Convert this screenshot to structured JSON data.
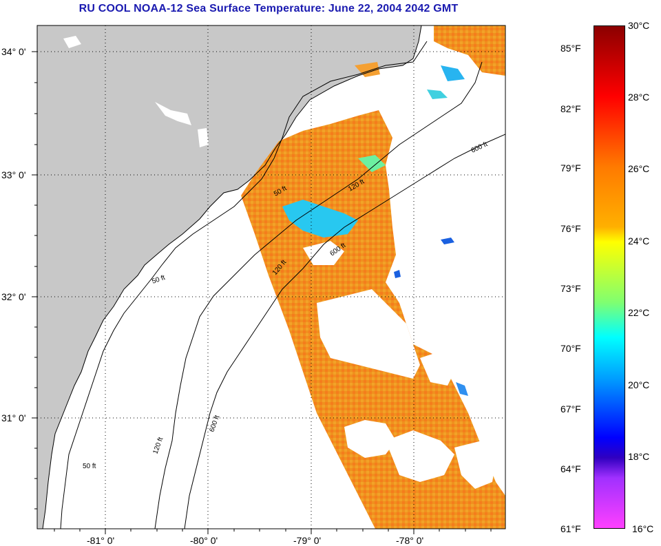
{
  "title": "RU COOL  NOAA-12  Sea Surface Temperature:  June 22, 2004 2042 GMT",
  "map": {
    "lat_labels": [
      "34° 0'",
      "33° 0'",
      "32° 0'",
      "31° 0'"
    ],
    "lon_labels": [
      "-81° 0'",
      "-80° 0'",
      "-79° 0'",
      "-78° 0'"
    ],
    "contour_labels": [
      "50 ft",
      "120 ft",
      "600 ft"
    ],
    "colors": {
      "land": "#c8c8c8",
      "ocean_no_data": "#ffffff",
      "sst_warm": "#f08a1e",
      "sst_cool": "#28c8f0"
    }
  },
  "colorbar": {
    "f_labels": [
      "85°F",
      "82°F",
      "79°F",
      "76°F",
      "73°F",
      "70°F",
      "67°F",
      "64°F",
      "61°F"
    ],
    "c_labels": [
      "30°C",
      "28°C",
      "26°C",
      "24°C",
      "22°C",
      "20°C",
      "18°C",
      "16°C"
    ],
    "range_c": [
      16,
      30
    ],
    "colors": [
      "#8b0000",
      "#ff0000",
      "#ff8000",
      "#ffff00",
      "#80ff80",
      "#00ffff",
      "#0080ff",
      "#0000ff",
      "#8000ff",
      "#ff40ff"
    ]
  }
}
